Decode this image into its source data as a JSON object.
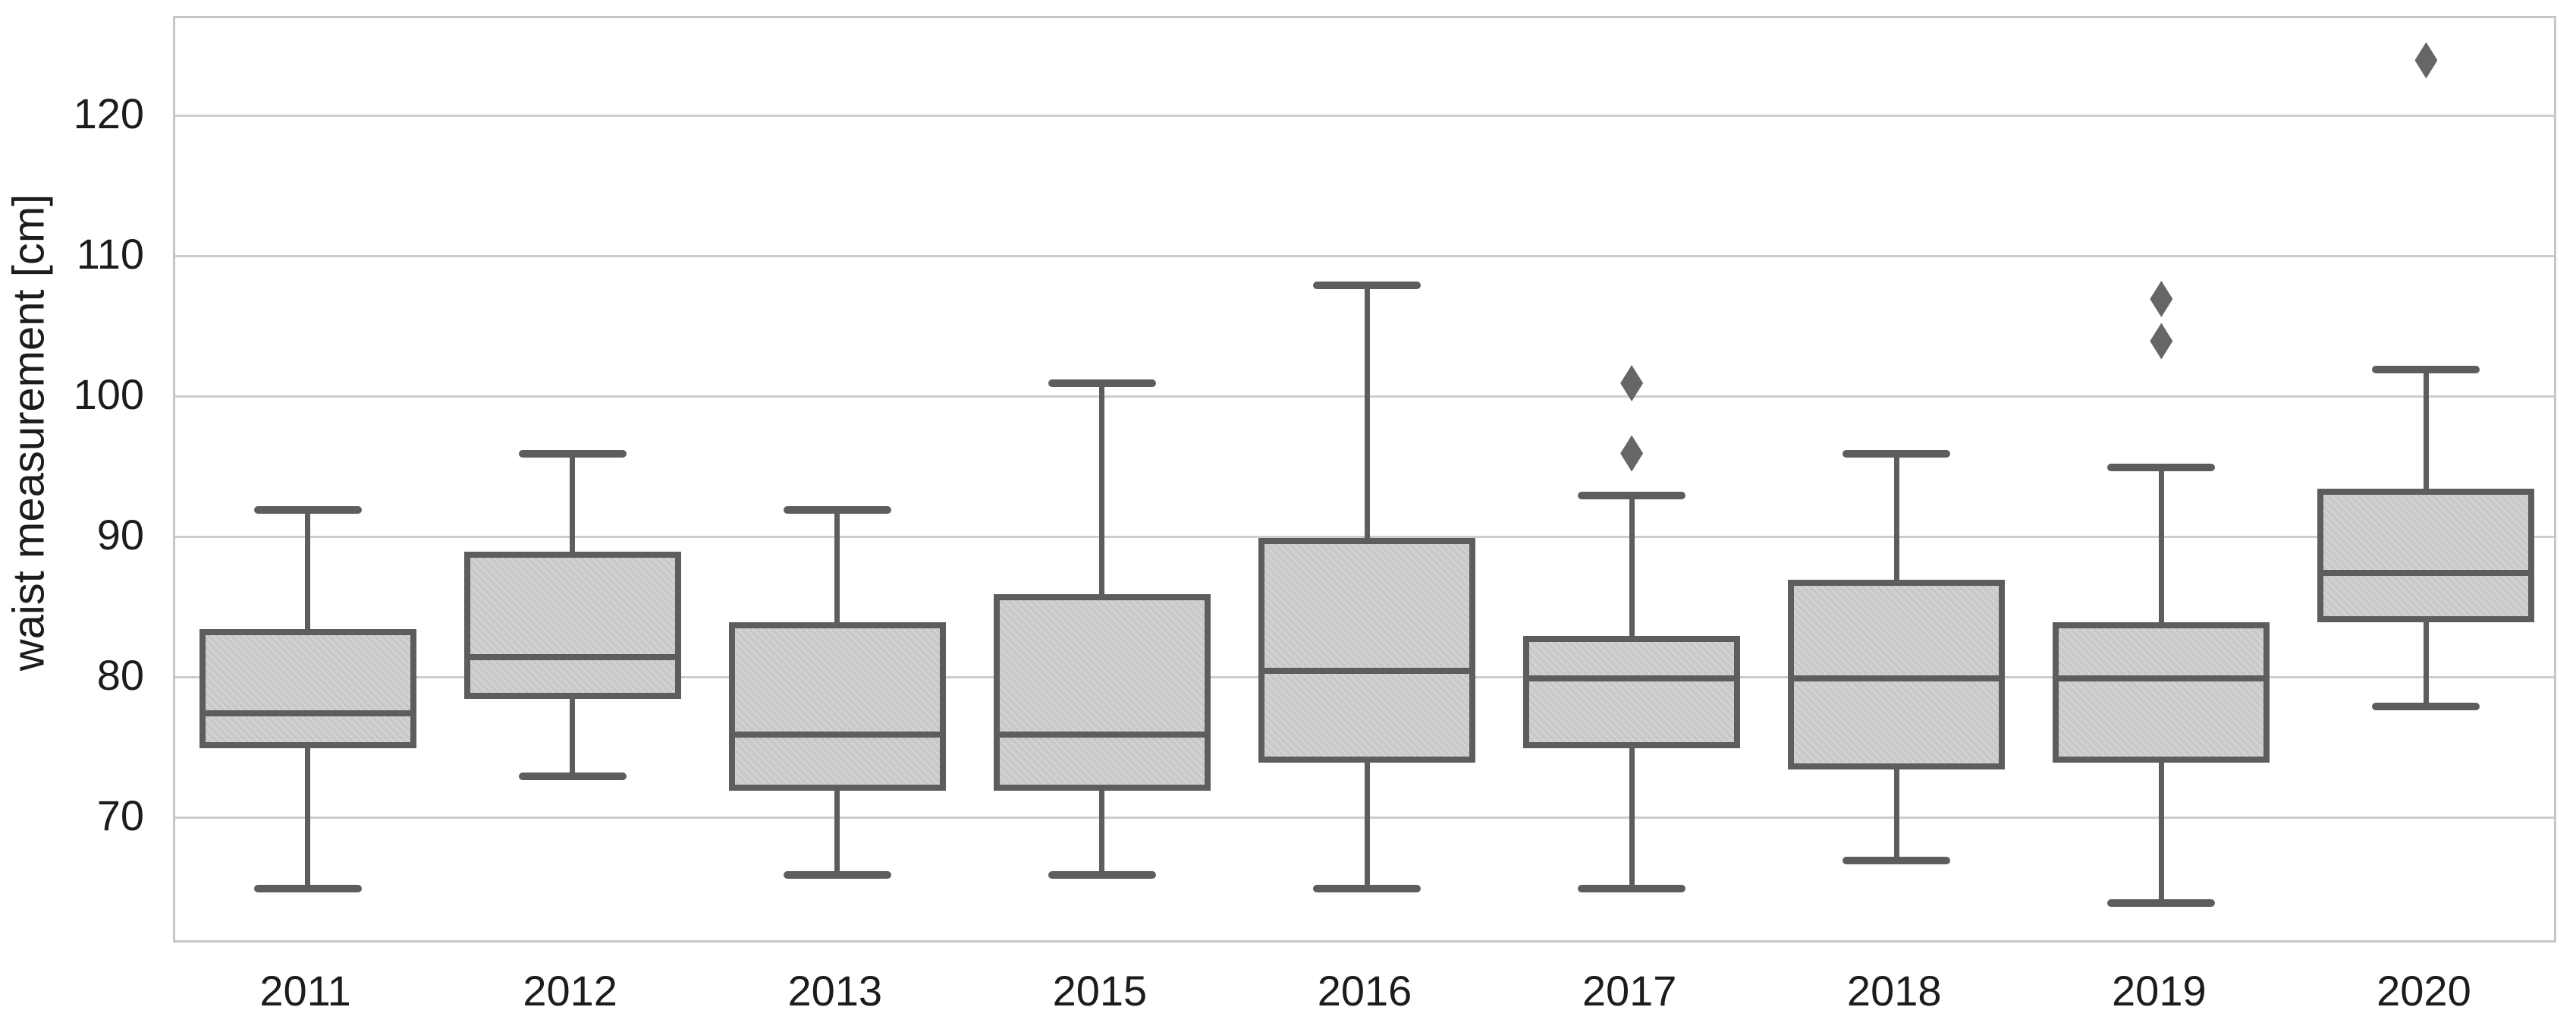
{
  "figure": {
    "colors": {
      "line": "#5d5d5d",
      "box_fill": "#c9c9c9",
      "grid": "#cdcdcd",
      "plot_border": "#c6c6c6",
      "text": "#1c1c1c",
      "outlier": "#666666",
      "background": "#ffffff"
    }
  },
  "chart_data": {
    "type": "boxplot",
    "title": "",
    "xlabel": "",
    "ylabel": "waist measurement [cm]",
    "categories": [
      "2011",
      "2012",
      "2013",
      "2015",
      "2016",
      "2017",
      "2018",
      "2019",
      "2020"
    ],
    "yticks": [
      70,
      80,
      90,
      100,
      110,
      120
    ],
    "ylim": [
      61,
      127
    ],
    "grid": true,
    "legend": false,
    "series": [
      {
        "category": "2011",
        "whislo": 65,
        "q1": 75,
        "med": 77.5,
        "q3": 83.5,
        "whishi": 92,
        "outliers": []
      },
      {
        "category": "2012",
        "whislo": 73,
        "q1": 78.5,
        "med": 81.5,
        "q3": 89,
        "whishi": 96,
        "outliers": []
      },
      {
        "category": "2013",
        "whislo": 66,
        "q1": 72,
        "med": 76,
        "q3": 84,
        "whishi": 92,
        "outliers": []
      },
      {
        "category": "2015",
        "whislo": 66,
        "q1": 72,
        "med": 76,
        "q3": 86,
        "whishi": 101,
        "outliers": []
      },
      {
        "category": "2016",
        "whislo": 65,
        "q1": 74,
        "med": 80.5,
        "q3": 90,
        "whishi": 108,
        "outliers": []
      },
      {
        "category": "2017",
        "whislo": 65,
        "q1": 75,
        "med": 80,
        "q3": 83,
        "whishi": 93,
        "outliers": [
          96,
          101
        ]
      },
      {
        "category": "2018",
        "whislo": 67,
        "q1": 73.5,
        "med": 80,
        "q3": 87,
        "whishi": 96,
        "outliers": []
      },
      {
        "category": "2019",
        "whislo": 64,
        "q1": 74,
        "med": 80,
        "q3": 84,
        "whishi": 95,
        "outliers": [
          104,
          107
        ]
      },
      {
        "category": "2020",
        "whislo": 78,
        "q1": 84,
        "med": 87.5,
        "q3": 93.5,
        "whishi": 102,
        "outliers": [
          124
        ]
      }
    ]
  }
}
